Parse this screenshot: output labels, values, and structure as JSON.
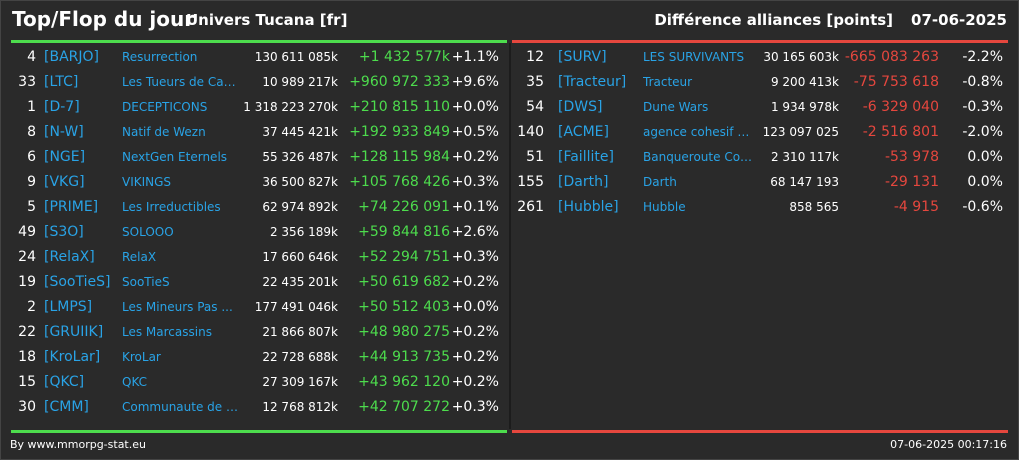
{
  "header": {
    "title": "Top/Flop du jour",
    "universe": "Univers Tucana [fr]",
    "metric": "Différence alliances [points]",
    "date": "07-06-2025"
  },
  "colors": {
    "top": "#4ddc4d",
    "flop": "#e5473e",
    "tag": "#29a3e6"
  },
  "top": [
    {
      "rank": "4",
      "tag": "[BARJO]",
      "name": "Resurrection",
      "points": "130 611 085k",
      "diff": "+1 432 577k",
      "pct": "+1.1%"
    },
    {
      "rank": "33",
      "tag": "[LTC]",
      "name": "Les Tueurs de Can...",
      "points": "10 989 217k",
      "diff": "+960 972 333",
      "pct": "+9.6%"
    },
    {
      "rank": "1",
      "tag": "[D-7]",
      "name": "DECEPTICONS",
      "points": "1 318 223 270k",
      "diff": "+210 815 110",
      "pct": "+0.0%"
    },
    {
      "rank": "8",
      "tag": "[N-W]",
      "name": "Natif de Wezn",
      "points": "37 445 421k",
      "diff": "+192 933 849",
      "pct": "+0.5%"
    },
    {
      "rank": "6",
      "tag": "[NGE]",
      "name": "NextGen Eternels",
      "points": "55 326 487k",
      "diff": "+128 115 984",
      "pct": "+0.2%"
    },
    {
      "rank": "9",
      "tag": "[VKG]",
      "name": "VIKINGS",
      "points": "36 500 827k",
      "diff": "+105 768 426",
      "pct": "+0.3%"
    },
    {
      "rank": "5",
      "tag": "[PRIME]",
      "name": "Les Irreductibles",
      "points": "62 974 892k",
      "diff": "+74 226 091",
      "pct": "+0.1%"
    },
    {
      "rank": "49",
      "tag": "[S3O]",
      "name": "SOLOOO",
      "points": "2 356 189k",
      "diff": "+59 844 816",
      "pct": "+2.6%"
    },
    {
      "rank": "24",
      "tag": "[RelaX]",
      "name": "RelaX",
      "points": "17 660 646k",
      "diff": "+52 294 751",
      "pct": "+0.3%"
    },
    {
      "rank": "19",
      "tag": "[SooTieS]",
      "name": "SooTieS",
      "points": "22 435 201k",
      "diff": "+50 619 682",
      "pct": "+0.2%"
    },
    {
      "rank": "2",
      "tag": "[LMPS]",
      "name": "Les Mineurs Pas ...",
      "points": "177 491 046k",
      "diff": "+50 512 403",
      "pct": "+0.0%"
    },
    {
      "rank": "22",
      "tag": "[GRUIIK]",
      "name": "Les Marcassins",
      "points": "21 866 807k",
      "diff": "+48 980 275",
      "pct": "+0.2%"
    },
    {
      "rank": "18",
      "tag": "[KroLar]",
      "name": "KroLar",
      "points": "22 728 688k",
      "diff": "+44 913 735",
      "pct": "+0.2%"
    },
    {
      "rank": "15",
      "tag": "[QKC]",
      "name": "QKC",
      "points": "27 309 167k",
      "diff": "+43 962 120",
      "pct": "+0.2%"
    },
    {
      "rank": "30",
      "tag": "[CMM]",
      "name": "Communaute de m...",
      "points": "12 768 812k",
      "diff": "+42 707 272",
      "pct": "+0.3%"
    }
  ],
  "flop": [
    {
      "rank": "12",
      "tag": "[SURV]",
      "name": "LES SURVIVANTS",
      "points": "30 165 603k",
      "diff": "-665 083 263",
      "pct": "-2.2%"
    },
    {
      "rank": "35",
      "tag": "[Tracteur]",
      "name": "Tracteur",
      "points": "9 200 413k",
      "diff": "-75 753 618",
      "pct": "-0.8%"
    },
    {
      "rank": "54",
      "tag": "[DWS]",
      "name": "Dune Wars",
      "points": "1 934 978k",
      "diff": "-6 329 040",
      "pct": "-0.3%"
    },
    {
      "rank": "140",
      "tag": "[ACME]",
      "name": "agence cohesif m...",
      "points": "123 097 025",
      "diff": "-2 516 801",
      "pct": "-2.0%"
    },
    {
      "rank": "51",
      "tag": "[Faillite]",
      "name": "Banqueroute Cosm...",
      "points": "2 310 117k",
      "diff": "-53 978",
      "pct": "0.0%"
    },
    {
      "rank": "155",
      "tag": "[Darth]",
      "name": "Darth",
      "points": "68 147 193",
      "diff": "-29 131",
      "pct": "0.0%"
    },
    {
      "rank": "261",
      "tag": "[Hubble]",
      "name": "Hubble",
      "points": "858 565",
      "diff": "-4 915",
      "pct": "-0.6%"
    }
  ],
  "footer": {
    "credit": "By www.mmorpg-stat.eu",
    "timestamp": "07-06-2025 00:17:16"
  }
}
